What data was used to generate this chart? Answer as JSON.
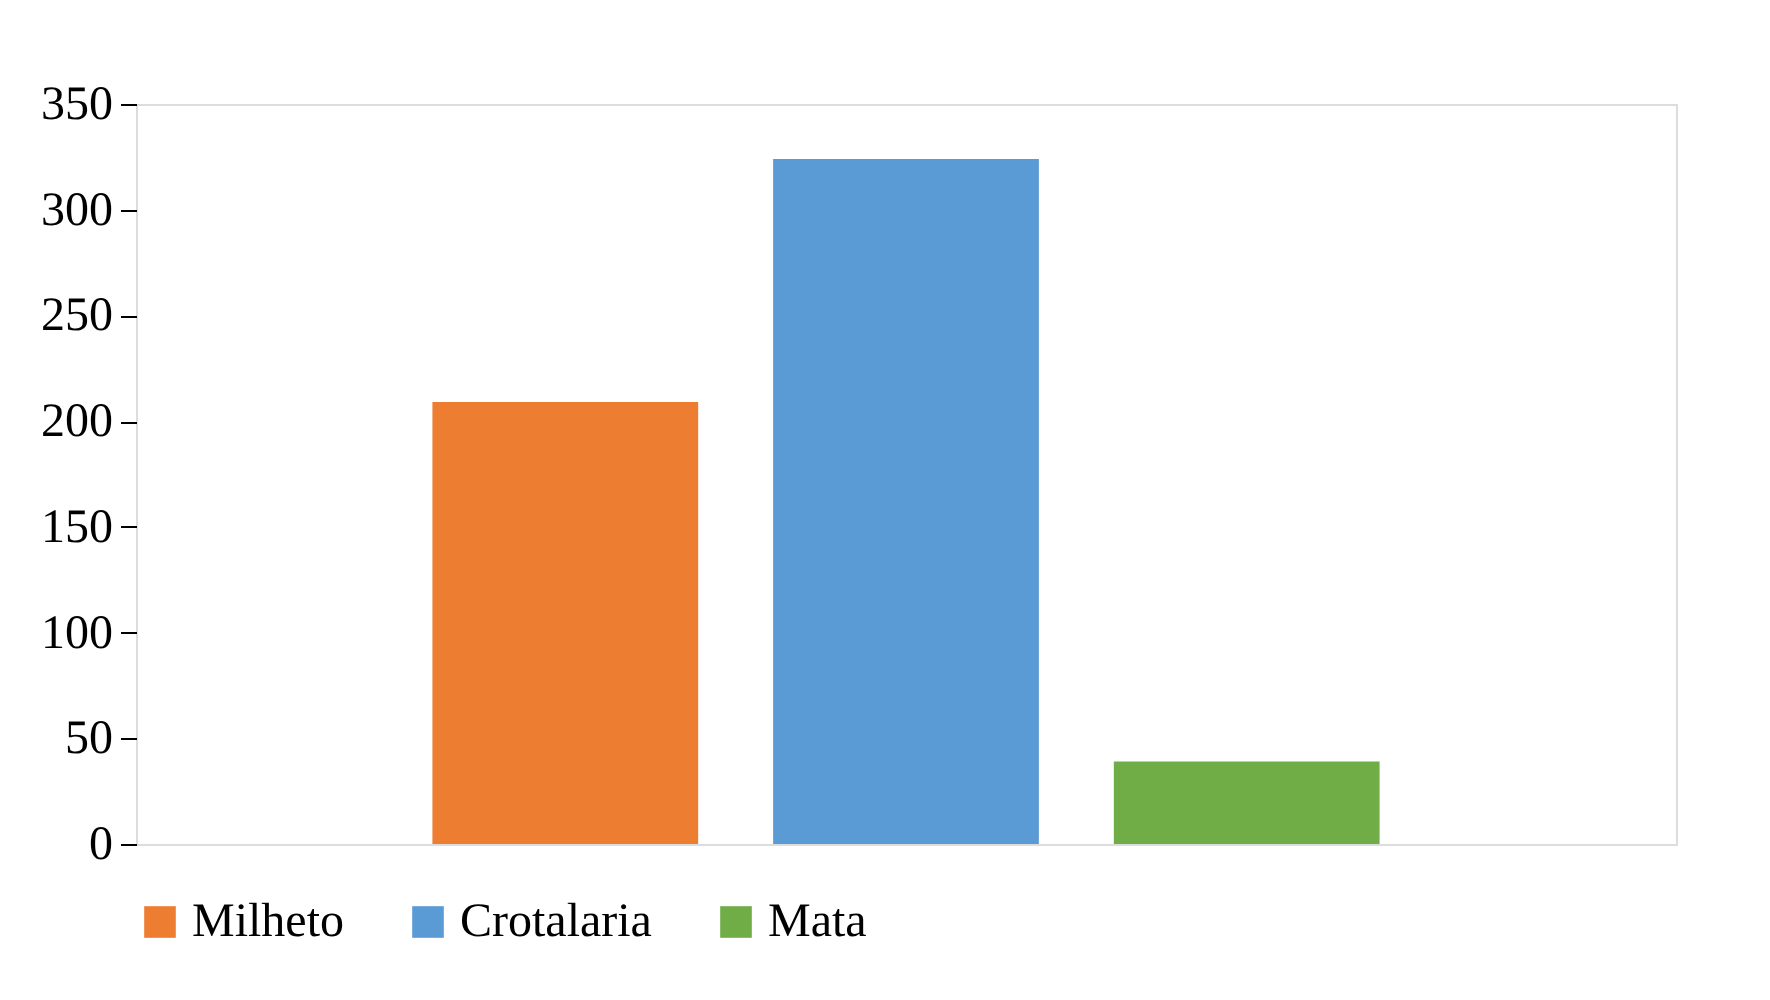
{
  "chart_data": {
    "type": "bar",
    "categories": [
      null
    ],
    "series": [
      {
        "name": "Milheto",
        "color": "#ed7d31",
        "values": [
          209
        ]
      },
      {
        "name": "Crotalaria",
        "color": "#5b9bd5",
        "values": [
          324
        ]
      },
      {
        "name": "Mata",
        "color": "#70ad47",
        "values": [
          39
        ]
      }
    ],
    "ylim": [
      0,
      350
    ],
    "yticks": [
      0,
      50,
      100,
      150,
      200,
      250,
      300,
      350
    ],
    "grid": false,
    "legend": "bottom"
  }
}
